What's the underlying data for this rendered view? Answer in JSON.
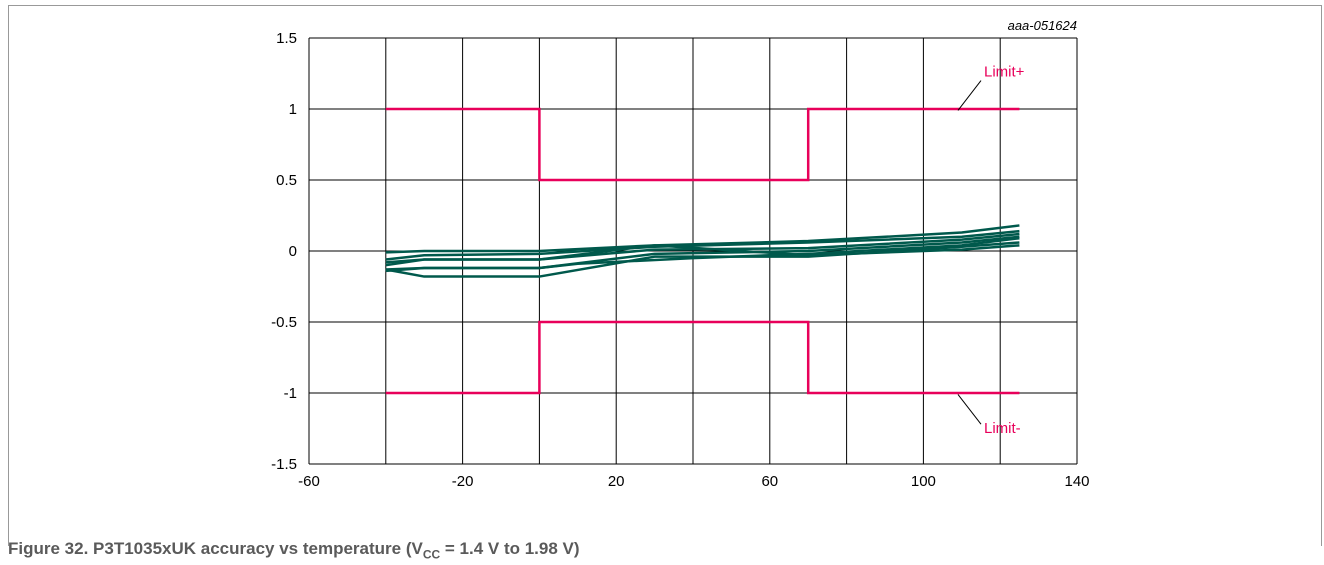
{
  "figure": {
    "code": "aaa-051624",
    "caption_prefix": "Figure 32.  P3T1035xUK accuracy vs temperature (V",
    "caption_sub": "CC",
    "caption_suffix": " = 1.4 V to 1.98 V)"
  },
  "colors": {
    "limit": "#e8005a",
    "data": "#00594c",
    "grid": "#000000"
  },
  "chart_data": {
    "type": "line",
    "title": "",
    "xlabel": "",
    "ylabel": "",
    "xlim": [
      -60,
      140
    ],
    "ylim": [
      -1.5,
      1.5
    ],
    "xticks": [
      -60,
      -20,
      20,
      60,
      100,
      140
    ],
    "xtick_labels": [
      "-60",
      "-20",
      "20",
      "60",
      "100",
      "140"
    ],
    "yticks": [
      1.5,
      1,
      0.5,
      0,
      -0.5,
      -1,
      -1.5
    ],
    "ytick_labels": [
      "1.5",
      "1",
      "0.5",
      "0",
      "-0.5",
      "-1",
      "-1.5"
    ],
    "vgrid": [
      -60,
      -40,
      -20,
      0,
      20,
      40,
      60,
      80,
      100,
      120,
      140
    ],
    "hgrid": [
      1.5,
      1,
      0.5,
      0,
      -0.5,
      -1,
      -1.5
    ],
    "limits": [
      {
        "name": "Limit+",
        "x": [
          -40,
          0,
          0,
          70,
          70,
          125
        ],
        "y": [
          1,
          1,
          0.5,
          0.5,
          1,
          1
        ]
      },
      {
        "name": "Limit-",
        "x": [
          -40,
          0,
          0,
          70,
          70,
          125
        ],
        "y": [
          -1,
          -1,
          -0.5,
          -0.5,
          -1,
          -1
        ]
      }
    ],
    "series": [
      {
        "x": [
          -40,
          -30,
          0,
          30,
          70,
          110,
          125
        ],
        "y": [
          -0.01,
          0.0,
          0.0,
          0.04,
          0.07,
          0.13,
          0.18
        ]
      },
      {
        "x": [
          -40,
          -30,
          0,
          30,
          70,
          110,
          125
        ],
        "y": [
          -0.06,
          -0.03,
          -0.02,
          0.03,
          0.06,
          0.1,
          0.14
        ]
      },
      {
        "x": [
          -40,
          -30,
          0,
          30,
          70,
          110,
          125
        ],
        "y": [
          -0.1,
          -0.06,
          -0.06,
          0.01,
          0.02,
          0.08,
          0.12
        ]
      },
      {
        "x": [
          -40,
          -30,
          0,
          30,
          70,
          110,
          125
        ],
        "y": [
          -0.13,
          -0.12,
          -0.12,
          -0.02,
          0.0,
          0.06,
          0.1
        ]
      },
      {
        "x": [
          -40,
          -30,
          0,
          30,
          70,
          110,
          125
        ],
        "y": [
          -0.13,
          -0.18,
          -0.18,
          -0.04,
          -0.04,
          0.03,
          0.06
        ]
      },
      {
        "x": [
          -40,
          -30,
          0,
          30,
          70,
          110,
          125
        ],
        "y": [
          -0.08,
          -0.06,
          -0.06,
          0.04,
          -0.03,
          0.01,
          0.04
        ]
      },
      {
        "x": [
          -40,
          -30,
          0,
          10,
          40,
          70,
          110,
          125
        ],
        "y": [
          -0.14,
          -0.12,
          -0.12,
          -0.09,
          -0.05,
          -0.02,
          0.04,
          0.09
        ]
      }
    ],
    "annotations": [
      "Limit+",
      "Limit-"
    ]
  }
}
